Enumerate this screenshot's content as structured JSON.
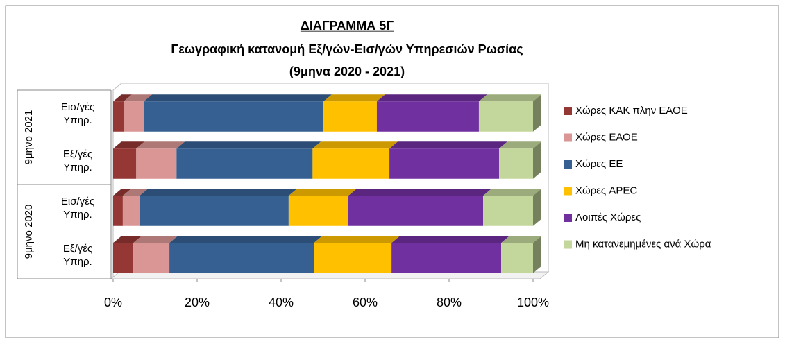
{
  "chart_data": {
    "type": "bar",
    "orientation": "horizontal",
    "stacked": true,
    "title": "ΔΙΑΓΡΑΜΜΑ 5Γ",
    "subtitle": [
      "Γεωγραφική κατανομή Εξ/γών-Εισ/γών Υπηρεσιών Ρωσίας",
      "(9μηνα 2020 - 2021)"
    ],
    "groups": [
      "9μηνο 2021",
      "9μηνο 2020"
    ],
    "categories": [
      "Εισ/γές Υπηρ.",
      "Εξ/γές Υπηρ.",
      "Εισ/γές Υπηρ.",
      "Εξ/γές Υπηρ."
    ],
    "series": [
      {
        "name": "Χώρες ΚΑΚ πλην ΕΑΟΕ",
        "color": "#953735",
        "values": [
          2.5,
          5.5,
          2.3,
          4.8
        ]
      },
      {
        "name": "Χώρες ΕΑΟΕ",
        "color": "#d99694",
        "values": [
          4.8,
          9.6,
          4.0,
          8.6
        ]
      },
      {
        "name": "Χώρες ΕΕ",
        "color": "#376092",
        "values": [
          42.8,
          32.4,
          35.5,
          34.4
        ]
      },
      {
        "name": "Χώρες APEC",
        "color": "#ffc000",
        "values": [
          12.7,
          18.3,
          14.2,
          18.5
        ]
      },
      {
        "name": "Λοιπές Χώρες",
        "color": "#7030a0",
        "values": [
          24.3,
          26.1,
          32.1,
          26.1
        ]
      },
      {
        "name": "Μη  κατανεμημένες ανά Χώρα",
        "color": "#c3d69b",
        "values": [
          12.9,
          8.1,
          11.9,
          7.6
        ]
      }
    ],
    "xlim": [
      0,
      100
    ],
    "xticks": [
      {
        "value": 0,
        "label": "0%"
      },
      {
        "value": 20,
        "label": "20%"
      },
      {
        "value": 40,
        "label": "40%"
      },
      {
        "value": 60,
        "label": "60%"
      },
      {
        "value": 80,
        "label": "80%"
      },
      {
        "value": 100,
        "label": "100%"
      }
    ],
    "legend": "right",
    "grid": false
  }
}
